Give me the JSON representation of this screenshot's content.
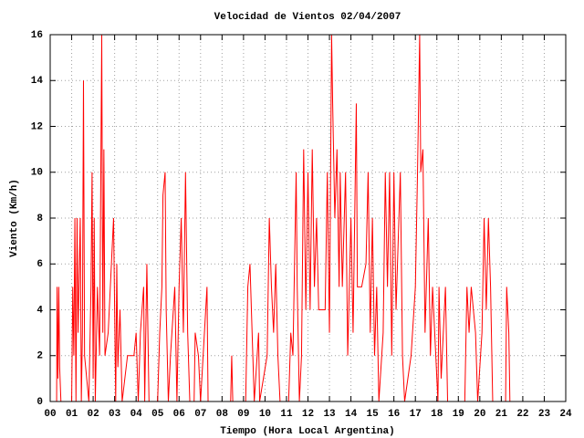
{
  "chart_data": {
    "type": "line",
    "title": "Velocidad de Vientos 02/04/2007",
    "xlabel": "Tiempo (Hora Local Argentina)",
    "ylabel": "Viento (Km/h)",
    "grid": true,
    "xlim": [
      0,
      24
    ],
    "ylim": [
      0,
      16
    ],
    "xticks": [
      {
        "value": 0,
        "label": "00"
      },
      {
        "value": 1,
        "label": "01"
      },
      {
        "value": 2,
        "label": "02"
      },
      {
        "value": 3,
        "label": "03"
      },
      {
        "value": 4,
        "label": "04"
      },
      {
        "value": 5,
        "label": "05"
      },
      {
        "value": 6,
        "label": "06"
      },
      {
        "value": 7,
        "label": "07"
      },
      {
        "value": 8,
        "label": "08"
      },
      {
        "value": 9,
        "label": "09"
      },
      10,
      11,
      12,
      13,
      14,
      15,
      16,
      17,
      18,
      19,
      20,
      21,
      22,
      23,
      24
    ],
    "yticks": [
      0,
      2,
      4,
      6,
      8,
      10,
      12,
      14,
      16
    ],
    "x": [
      0.3,
      0.32,
      0.36,
      0.4,
      0.44,
      0.5,
      1.0,
      1.05,
      1.1,
      1.15,
      1.2,
      1.25,
      1.3,
      1.4,
      1.45,
      1.5,
      1.55,
      1.6,
      1.8,
      1.9,
      1.95,
      2.0,
      2.05,
      2.1,
      2.2,
      2.3,
      2.4,
      2.45,
      2.5,
      2.55,
      2.7,
      2.9,
      2.95,
      3.05,
      3.1,
      3.15,
      3.25,
      3.35,
      3.6,
      3.9,
      4.0,
      4.1,
      4.2,
      4.35,
      4.4,
      4.5,
      4.6,
      5.0,
      5.1,
      5.2,
      5.25,
      5.35,
      5.4,
      5.5,
      5.6,
      5.8,
      5.9,
      6.0,
      6.1,
      6.2,
      6.3,
      6.4,
      6.5,
      6.7,
      6.75,
      6.9,
      7.0,
      7.3,
      7.35,
      8.4,
      8.45,
      8.5,
      9.1,
      9.2,
      9.3,
      9.4,
      9.5,
      9.7,
      9.75,
      10.1,
      10.2,
      10.3,
      10.4,
      10.5,
      10.6,
      10.7,
      11.1,
      11.2,
      11.3,
      11.45,
      11.5,
      11.6,
      11.7,
      11.8,
      11.9,
      12.0,
      12.1,
      12.2,
      12.3,
      12.4,
      12.5,
      12.8,
      12.9,
      13.0,
      13.1,
      13.15,
      13.25,
      13.35,
      13.45,
      13.5,
      13.6,
      13.75,
      13.85,
      14.0,
      14.1,
      14.25,
      14.3,
      14.5,
      14.7,
      14.8,
      14.9,
      15.0,
      15.1,
      15.2,
      15.3,
      15.5,
      15.6,
      15.7,
      15.8,
      15.9,
      16.0,
      16.1,
      16.3,
      16.4,
      16.5,
      16.8,
      17.0,
      17.1,
      17.2,
      17.25,
      17.35,
      17.45,
      17.6,
      17.7,
      17.8,
      17.95,
      18.05,
      18.1,
      18.2,
      18.3,
      18.4,
      18.5,
      19.3,
      19.4,
      19.5,
      19.6,
      19.7,
      19.8,
      19.9,
      20.1,
      20.2,
      20.3,
      20.4,
      20.5,
      20.6,
      21.2,
      21.25,
      21.35,
      21.4
    ],
    "series": [
      {
        "name": "Viento",
        "color": "#ff0000",
        "values": [
          0,
          5,
          1,
          5,
          1.5,
          0,
          0,
          5,
          2,
          8,
          0,
          8,
          3,
          8,
          0,
          3,
          14,
          2,
          0,
          5,
          10,
          1,
          8,
          0,
          5,
          2,
          16,
          3,
          11,
          2,
          3,
          7,
          8,
          0,
          6,
          1.5,
          4,
          0,
          2,
          2,
          3,
          0,
          3,
          5,
          0,
          6,
          0,
          0,
          3,
          5,
          9,
          10,
          4,
          0,
          2,
          5,
          0,
          5,
          8,
          3,
          10,
          3,
          0,
          0,
          3,
          2,
          0,
          5,
          0,
          0,
          2,
          0,
          0,
          5,
          6,
          3,
          0,
          3,
          0,
          2,
          8,
          5,
          3,
          6,
          2,
          0,
          0,
          3,
          2,
          10,
          5,
          0,
          2,
          11,
          4,
          10,
          4,
          11,
          5,
          8,
          4,
          4,
          10,
          3,
          16,
          13,
          8,
          11,
          5,
          10,
          5,
          10,
          2,
          8,
          3,
          13,
          5,
          5,
          6,
          10,
          3,
          8,
          2,
          5,
          0,
          3,
          10,
          5,
          10,
          2,
          10,
          4,
          10,
          2,
          0,
          2,
          5,
          10,
          16,
          10,
          11,
          3,
          8,
          2,
          5,
          2,
          0,
          5,
          1,
          3,
          5,
          0,
          0,
          5,
          3,
          5,
          4,
          3,
          0,
          3,
          8,
          4,
          8,
          5,
          0,
          0,
          5,
          3,
          0
        ]
      }
    ]
  }
}
